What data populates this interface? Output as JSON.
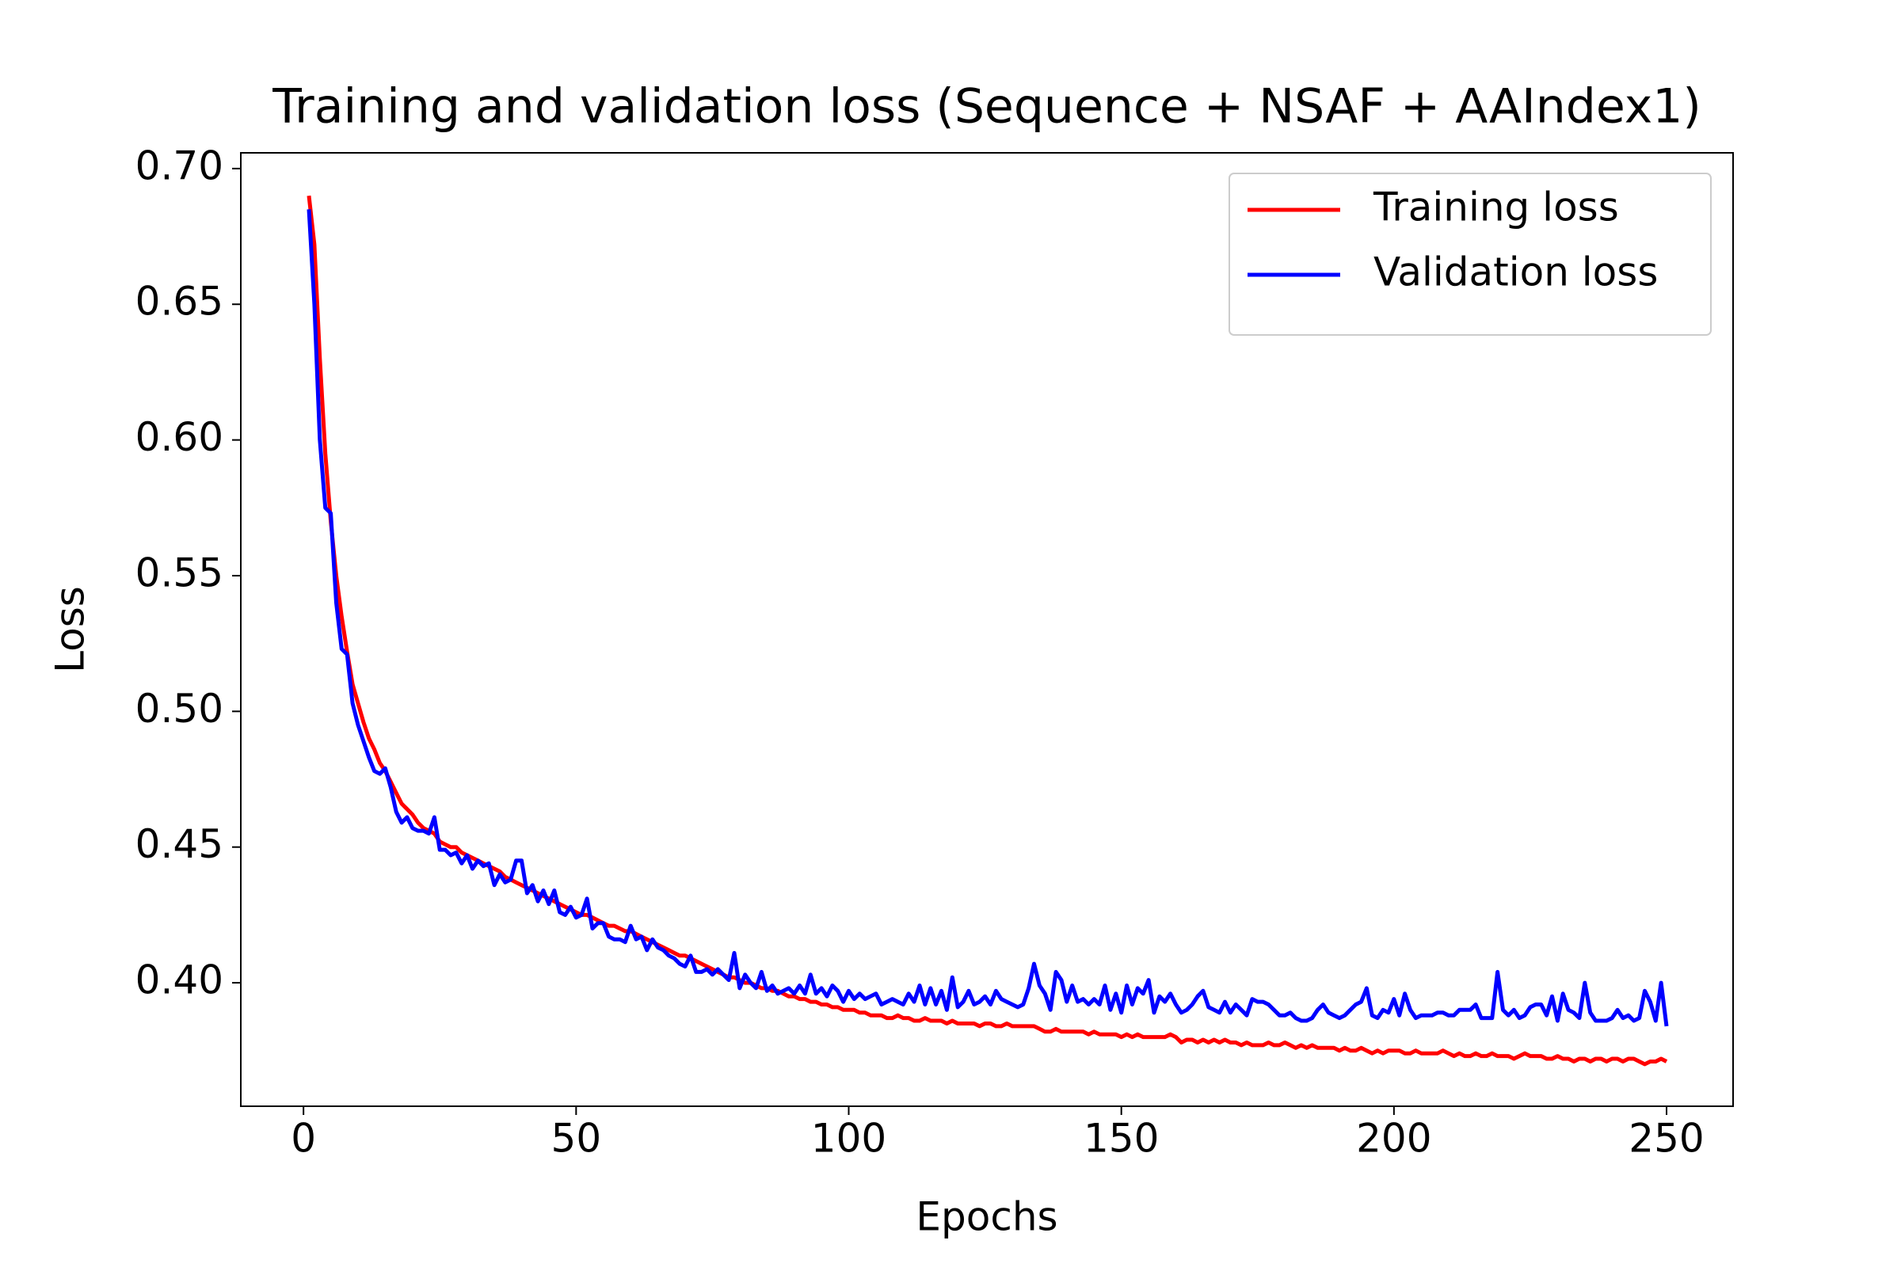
{
  "chart_data": {
    "type": "line",
    "title": "Training and validation loss (Sequence + NSAF + AAIndex1)",
    "x_label": "Epochs",
    "y_label": "Loss",
    "x": [
      1,
      2,
      3,
      4,
      5,
      6,
      7,
      8,
      9,
      10,
      11,
      12,
      13,
      14,
      15,
      16,
      17,
      18,
      19,
      20,
      21,
      22,
      23,
      24,
      25,
      26,
      27,
      28,
      29,
      30,
      31,
      32,
      33,
      34,
      35,
      36,
      37,
      38,
      39,
      40,
      41,
      42,
      43,
      44,
      45,
      46,
      47,
      48,
      49,
      50,
      51,
      52,
      53,
      54,
      55,
      56,
      57,
      58,
      59,
      60,
      61,
      62,
      63,
      64,
      65,
      66,
      67,
      68,
      69,
      70,
      71,
      72,
      73,
      74,
      75,
      76,
      77,
      78,
      79,
      80,
      81,
      82,
      83,
      84,
      85,
      86,
      87,
      88,
      89,
      90,
      91,
      92,
      93,
      94,
      95,
      96,
      97,
      98,
      99,
      100,
      101,
      102,
      103,
      104,
      105,
      106,
      107,
      108,
      109,
      110,
      111,
      112,
      113,
      114,
      115,
      116,
      117,
      118,
      119,
      120,
      121,
      122,
      123,
      124,
      125,
      126,
      127,
      128,
      129,
      130,
      131,
      132,
      133,
      134,
      135,
      136,
      137,
      138,
      139,
      140,
      141,
      142,
      143,
      144,
      145,
      146,
      147,
      148,
      149,
      150,
      151,
      152,
      153,
      154,
      155,
      156,
      157,
      158,
      159,
      160,
      161,
      162,
      163,
      164,
      165,
      166,
      167,
      168,
      169,
      170,
      171,
      172,
      173,
      174,
      175,
      176,
      177,
      178,
      179,
      180,
      181,
      182,
      183,
      184,
      185,
      186,
      187,
      188,
      189,
      190,
      191,
      192,
      193,
      194,
      195,
      196,
      197,
      198,
      199,
      200,
      201,
      202,
      203,
      204,
      205,
      206,
      207,
      208,
      209,
      210,
      211,
      212,
      213,
      214,
      215,
      216,
      217,
      218,
      219,
      220,
      221,
      222,
      223,
      224,
      225,
      226,
      227,
      228,
      229,
      230,
      231,
      232,
      233,
      234,
      235,
      236,
      237,
      238,
      239,
      240,
      241,
      242,
      243,
      244,
      245,
      246,
      247,
      248,
      249,
      250
    ],
    "series": [
      {
        "name": "Training loss",
        "color": "#ff0000",
        "values": [
          0.69,
          0.672,
          0.63,
          0.595,
          0.57,
          0.55,
          0.535,
          0.522,
          0.51,
          0.503,
          0.496,
          0.49,
          0.486,
          0.481,
          0.478,
          0.474,
          0.47,
          0.466,
          0.464,
          0.462,
          0.459,
          0.457,
          0.456,
          0.455,
          0.452,
          0.451,
          0.45,
          0.45,
          0.448,
          0.447,
          0.446,
          0.445,
          0.444,
          0.443,
          0.442,
          0.441,
          0.439,
          0.438,
          0.437,
          0.436,
          0.435,
          0.434,
          0.433,
          0.432,
          0.431,
          0.43,
          0.429,
          0.428,
          0.427,
          0.426,
          0.425,
          0.425,
          0.424,
          0.423,
          0.422,
          0.421,
          0.421,
          0.42,
          0.419,
          0.419,
          0.418,
          0.417,
          0.416,
          0.415,
          0.414,
          0.413,
          0.412,
          0.411,
          0.41,
          0.41,
          0.409,
          0.408,
          0.407,
          0.406,
          0.405,
          0.404,
          0.403,
          0.402,
          0.402,
          0.401,
          0.4,
          0.4,
          0.399,
          0.398,
          0.398,
          0.397,
          0.397,
          0.396,
          0.395,
          0.395,
          0.394,
          0.394,
          0.393,
          0.393,
          0.392,
          0.392,
          0.391,
          0.391,
          0.39,
          0.39,
          0.39,
          0.389,
          0.389,
          0.388,
          0.388,
          0.388,
          0.387,
          0.387,
          0.388,
          0.387,
          0.387,
          0.386,
          0.386,
          0.387,
          0.386,
          0.386,
          0.386,
          0.385,
          0.386,
          0.385,
          0.385,
          0.385,
          0.385,
          0.384,
          0.385,
          0.385,
          0.384,
          0.384,
          0.385,
          0.384,
          0.384,
          0.384,
          0.384,
          0.384,
          0.383,
          0.382,
          0.382,
          0.383,
          0.382,
          0.382,
          0.382,
          0.382,
          0.382,
          0.381,
          0.382,
          0.381,
          0.381,
          0.381,
          0.381,
          0.38,
          0.381,
          0.38,
          0.381,
          0.38,
          0.38,
          0.38,
          0.38,
          0.38,
          0.381,
          0.38,
          0.378,
          0.379,
          0.379,
          0.378,
          0.379,
          0.378,
          0.379,
          0.378,
          0.379,
          0.378,
          0.378,
          0.377,
          0.378,
          0.377,
          0.377,
          0.377,
          0.378,
          0.377,
          0.377,
          0.378,
          0.377,
          0.376,
          0.377,
          0.376,
          0.377,
          0.376,
          0.376,
          0.376,
          0.376,
          0.375,
          0.376,
          0.375,
          0.375,
          0.376,
          0.375,
          0.374,
          0.375,
          0.374,
          0.375,
          0.375,
          0.375,
          0.374,
          0.374,
          0.375,
          0.374,
          0.374,
          0.374,
          0.374,
          0.375,
          0.374,
          0.373,
          0.374,
          0.373,
          0.373,
          0.374,
          0.373,
          0.373,
          0.374,
          0.373,
          0.373,
          0.373,
          0.372,
          0.373,
          0.374,
          0.373,
          0.373,
          0.373,
          0.372,
          0.372,
          0.373,
          0.372,
          0.372,
          0.371,
          0.372,
          0.372,
          0.371,
          0.372,
          0.372,
          0.371,
          0.372,
          0.372,
          0.371,
          0.372,
          0.372,
          0.371,
          0.37,
          0.371,
          0.371,
          0.372,
          0.371
        ]
      },
      {
        "name": "Validation loss",
        "color": "#0000ff",
        "values": [
          0.685,
          0.65,
          0.6,
          0.575,
          0.573,
          0.54,
          0.523,
          0.521,
          0.503,
          0.495,
          0.489,
          0.483,
          0.478,
          0.477,
          0.479,
          0.472,
          0.463,
          0.459,
          0.461,
          0.457,
          0.456,
          0.456,
          0.455,
          0.461,
          0.449,
          0.449,
          0.447,
          0.448,
          0.444,
          0.447,
          0.442,
          0.445,
          0.443,
          0.444,
          0.436,
          0.44,
          0.437,
          0.438,
          0.445,
          0.445,
          0.433,
          0.436,
          0.43,
          0.434,
          0.429,
          0.434,
          0.426,
          0.425,
          0.428,
          0.424,
          0.425,
          0.431,
          0.42,
          0.422,
          0.422,
          0.417,
          0.416,
          0.416,
          0.415,
          0.421,
          0.416,
          0.417,
          0.412,
          0.416,
          0.413,
          0.412,
          0.41,
          0.409,
          0.407,
          0.406,
          0.41,
          0.404,
          0.404,
          0.405,
          0.403,
          0.405,
          0.403,
          0.401,
          0.411,
          0.398,
          0.403,
          0.4,
          0.398,
          0.404,
          0.397,
          0.399,
          0.396,
          0.397,
          0.398,
          0.396,
          0.399,
          0.396,
          0.403,
          0.396,
          0.398,
          0.395,
          0.399,
          0.397,
          0.393,
          0.397,
          0.394,
          0.396,
          0.394,
          0.395,
          0.396,
          0.392,
          0.393,
          0.394,
          0.393,
          0.392,
          0.396,
          0.393,
          0.399,
          0.392,
          0.398,
          0.392,
          0.397,
          0.39,
          0.402,
          0.391,
          0.393,
          0.397,
          0.392,
          0.393,
          0.395,
          0.392,
          0.397,
          0.394,
          0.393,
          0.392,
          0.391,
          0.392,
          0.398,
          0.407,
          0.399,
          0.396,
          0.39,
          0.404,
          0.401,
          0.393,
          0.399,
          0.393,
          0.394,
          0.392,
          0.394,
          0.392,
          0.399,
          0.39,
          0.396,
          0.389,
          0.399,
          0.392,
          0.398,
          0.396,
          0.401,
          0.389,
          0.395,
          0.393,
          0.396,
          0.392,
          0.389,
          0.39,
          0.392,
          0.395,
          0.397,
          0.391,
          0.39,
          0.389,
          0.393,
          0.389,
          0.392,
          0.39,
          0.388,
          0.394,
          0.393,
          0.393,
          0.392,
          0.39,
          0.388,
          0.388,
          0.389,
          0.387,
          0.386,
          0.386,
          0.387,
          0.39,
          0.392,
          0.389,
          0.388,
          0.387,
          0.388,
          0.39,
          0.392,
          0.393,
          0.398,
          0.388,
          0.387,
          0.39,
          0.389,
          0.394,
          0.388,
          0.396,
          0.39,
          0.387,
          0.388,
          0.388,
          0.388,
          0.389,
          0.389,
          0.388,
          0.388,
          0.39,
          0.39,
          0.39,
          0.392,
          0.387,
          0.387,
          0.387,
          0.404,
          0.39,
          0.388,
          0.39,
          0.387,
          0.388,
          0.391,
          0.392,
          0.392,
          0.388,
          0.395,
          0.386,
          0.396,
          0.39,
          0.389,
          0.387,
          0.4,
          0.389,
          0.386,
          0.386,
          0.386,
          0.387,
          0.39,
          0.387,
          0.388,
          0.386,
          0.387,
          0.397,
          0.393,
          0.386,
          0.4,
          0.384
        ]
      }
    ],
    "xlim": [
      -11.5,
      262.2
    ],
    "xticks": [
      0,
      50,
      100,
      150,
      200,
      250
    ],
    "ylim": [
      0.3545,
      0.7058
    ],
    "yticks": [
      {
        "value": 0.4,
        "label": "0.40"
      },
      {
        "value": 0.45,
        "label": "0.45"
      },
      {
        "value": 0.5,
        "label": "0.50"
      },
      {
        "value": 0.55,
        "label": "0.55"
      },
      {
        "value": 0.6,
        "label": "0.60"
      },
      {
        "value": 0.65,
        "label": "0.65"
      },
      {
        "value": 0.7,
        "label": "0.70"
      }
    ],
    "grid": false,
    "legend": "upper right"
  }
}
